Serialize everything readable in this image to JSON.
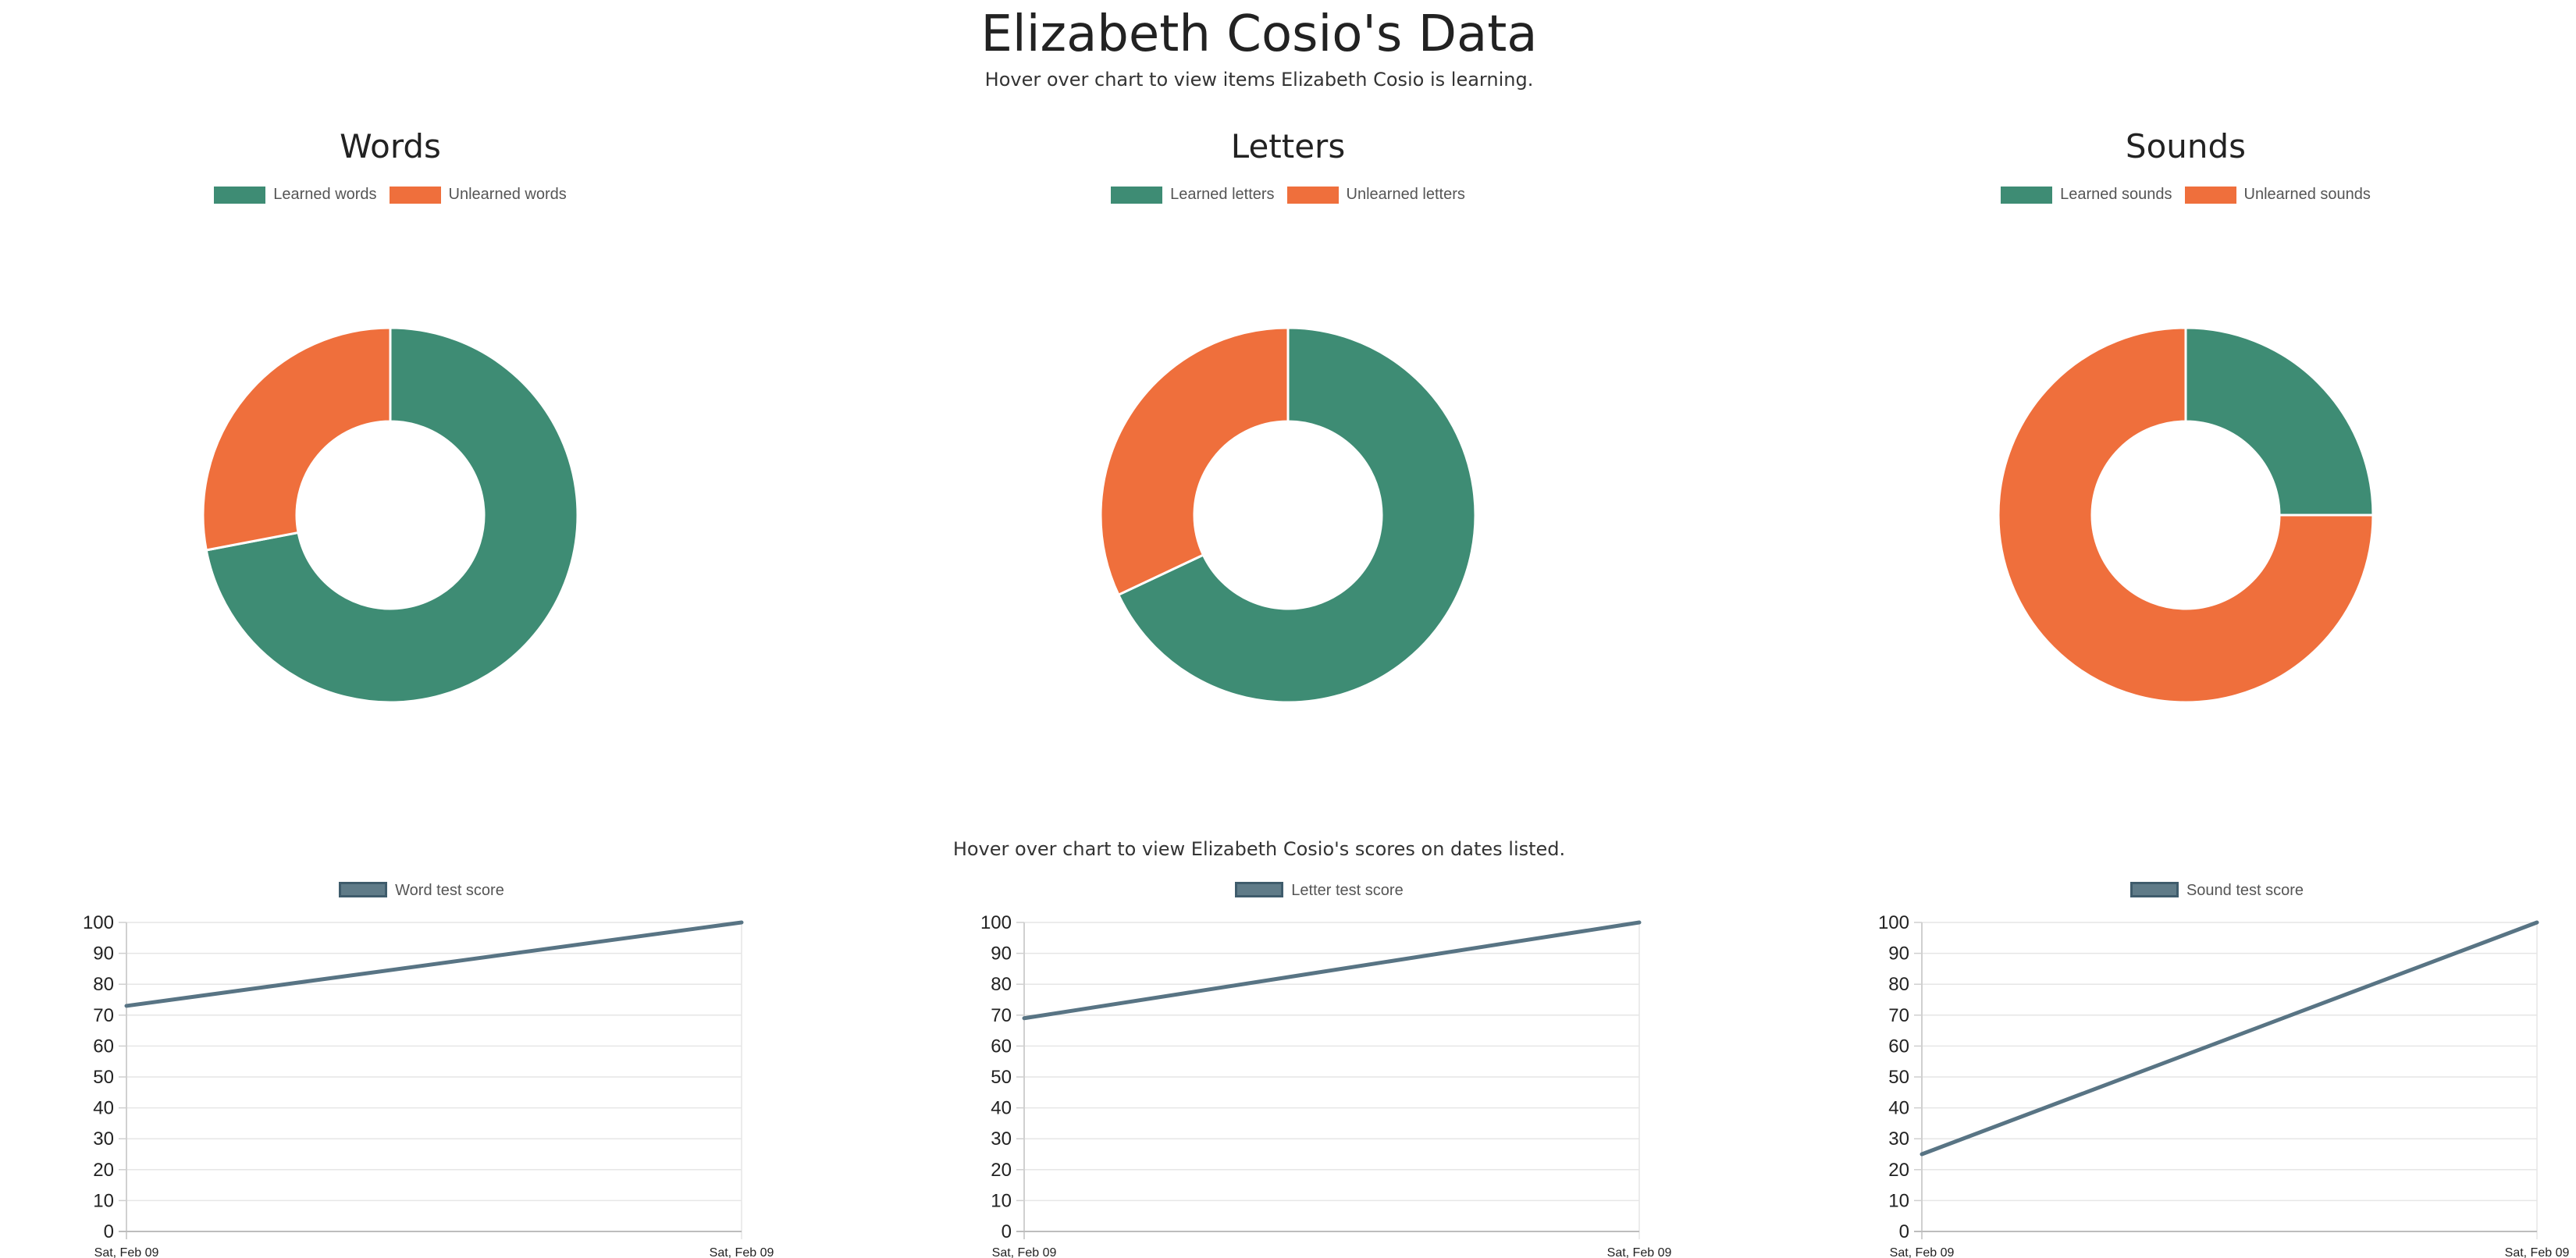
{
  "page": {
    "title": "Elizabeth Cosio's Data",
    "subtitle": "Hover over chart to view items Elizabeth Cosio is learning.",
    "line_subtitle": "Hover over chart to view Elizabeth Cosio's scores on dates listed."
  },
  "colors": {
    "learned": "#3e8c74",
    "unlearned": "#ef6f3c",
    "line": "#587484"
  },
  "chart_data": [
    {
      "type": "pie",
      "title": "Words",
      "labels": [
        "Learned words",
        "Unlearned words"
      ],
      "values": [
        72,
        28
      ],
      "legend": "top"
    },
    {
      "type": "pie",
      "title": "Letters",
      "labels": [
        "Learned letters",
        "Unlearned letters"
      ],
      "values": [
        68,
        32
      ],
      "legend": "top"
    },
    {
      "type": "pie",
      "title": "Sounds",
      "labels": [
        "Learned sounds",
        "Unlearned sounds"
      ],
      "values": [
        25,
        75
      ],
      "legend": "top"
    },
    {
      "type": "line",
      "x": [
        "Sat, Feb 09",
        "Sat, Feb 09"
      ],
      "series": [
        {
          "name": "Word test score",
          "values": [
            73,
            100
          ]
        }
      ],
      "ylim": [
        0,
        100
      ],
      "yticks": [
        0,
        10,
        20,
        30,
        40,
        50,
        60,
        70,
        80,
        90,
        100
      ],
      "grid": true,
      "legend": "top"
    },
    {
      "type": "line",
      "x": [
        "Sat, Feb 09",
        "Sat, Feb 09"
      ],
      "series": [
        {
          "name": "Letter test score",
          "values": [
            69,
            100
          ]
        }
      ],
      "ylim": [
        0,
        100
      ],
      "yticks": [
        0,
        10,
        20,
        30,
        40,
        50,
        60,
        70,
        80,
        90,
        100
      ],
      "grid": true,
      "legend": "top"
    },
    {
      "type": "line",
      "x": [
        "Sat, Feb 09",
        "Sat, Feb 09"
      ],
      "series": [
        {
          "name": "Sound test score",
          "values": [
            25,
            100
          ]
        }
      ],
      "ylim": [
        0,
        100
      ],
      "yticks": [
        0,
        10,
        20,
        30,
        40,
        50,
        60,
        70,
        80,
        90,
        100
      ],
      "grid": true,
      "legend": "top"
    }
  ]
}
